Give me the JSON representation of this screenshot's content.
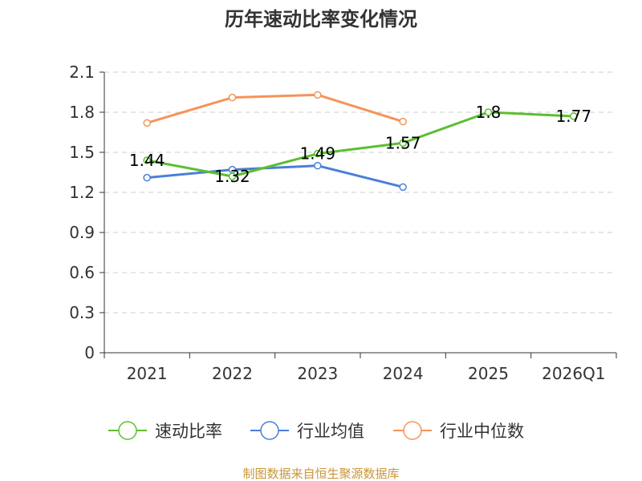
{
  "chart_data": {
    "type": "line",
    "title": "历年速动比率变化情况",
    "categories": [
      "2021",
      "2022",
      "2023",
      "2024",
      "2025",
      "2026Q1"
    ],
    "ylim": [
      0,
      2.1
    ],
    "yticks": [
      "0",
      "0.3",
      "0.6",
      "0.9",
      "1.2",
      "1.5",
      "1.8",
      "2.1"
    ],
    "grid": true,
    "legend_position": "bottom",
    "series": [
      {
        "name": "速动比率",
        "color": "#5bbf2f",
        "values": [
          1.44,
          1.32,
          1.49,
          1.57,
          1.8,
          1.77
        ],
        "labels": [
          "1.44",
          "1.32",
          "1.49",
          "1.57",
          "1.8",
          "1.77"
        ]
      },
      {
        "name": "行业均值",
        "color": "#4a7fd8",
        "values": [
          1.31,
          1.37,
          1.4,
          1.24,
          null,
          null
        ]
      },
      {
        "name": "行业中位数",
        "color": "#f5935a",
        "values": [
          1.72,
          1.91,
          1.93,
          1.73,
          null,
          null
        ]
      }
    ],
    "source": "制图数据来自恒生聚源数据库"
  }
}
